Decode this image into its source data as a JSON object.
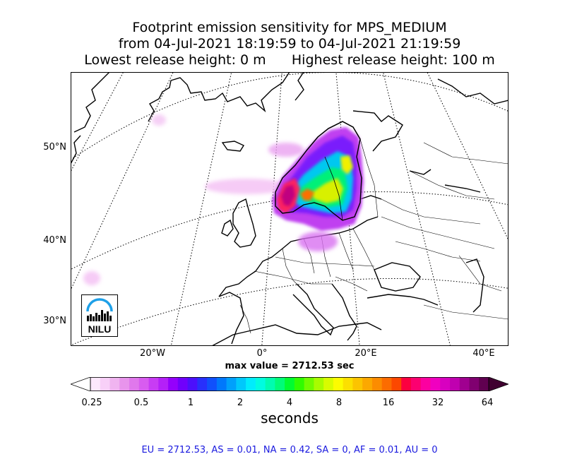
{
  "title": {
    "line1": "Footprint emission sensitivity for MPS_MEDIUM",
    "line2": "from 04-Jul-2021 18:19:59 to 04-Jul-2021 21:19:59",
    "line3": "Lowest release height: 0 m      Highest release height: 100 m"
  },
  "map": {
    "lat_labels": [
      "50°N",
      "40°N",
      "30°N"
    ],
    "lon_labels": [
      "20°W",
      "0°",
      "20°E",
      "40°E"
    ],
    "logo_text": "NILU",
    "max_value": "max value = 2712.53 sec"
  },
  "colorbar": {
    "title": "seconds",
    "tick_labels": [
      "0.25",
      "0.5",
      "1",
      "2",
      "4",
      "8",
      "16",
      "32",
      "64"
    ],
    "colors": [
      "#fce8fc",
      "#f8d0f8",
      "#f0b4f0",
      "#e894ec",
      "#e078ec",
      "#d85cf0",
      "#c83cf4",
      "#b420f8",
      "#9400fc",
      "#7000fc",
      "#4c10fc",
      "#2830fc",
      "#1050fc",
      "#0078fc",
      "#00a0fc",
      "#00c8fc",
      "#00ecfc",
      "#00fce0",
      "#00fcb0",
      "#00fc78",
      "#00fc30",
      "#30fc00",
      "#70fc00",
      "#a8fc00",
      "#d8fc00",
      "#fcfc00",
      "#fce000",
      "#fcc400",
      "#fca800",
      "#fc8c00",
      "#fc6c00",
      "#fc4800",
      "#fc0040",
      "#fc0070",
      "#fc00a0",
      "#f000c0",
      "#d800c0",
      "#c000b0",
      "#a00090",
      "#800070",
      "#600050"
    ],
    "under_color": "#ffffff",
    "over_color": "#400030"
  },
  "stats": "EU = 2712.53,  AS = 0.01,  NA = 0.42,  SA = 0,  AF = 0.01,  AU = 0"
}
